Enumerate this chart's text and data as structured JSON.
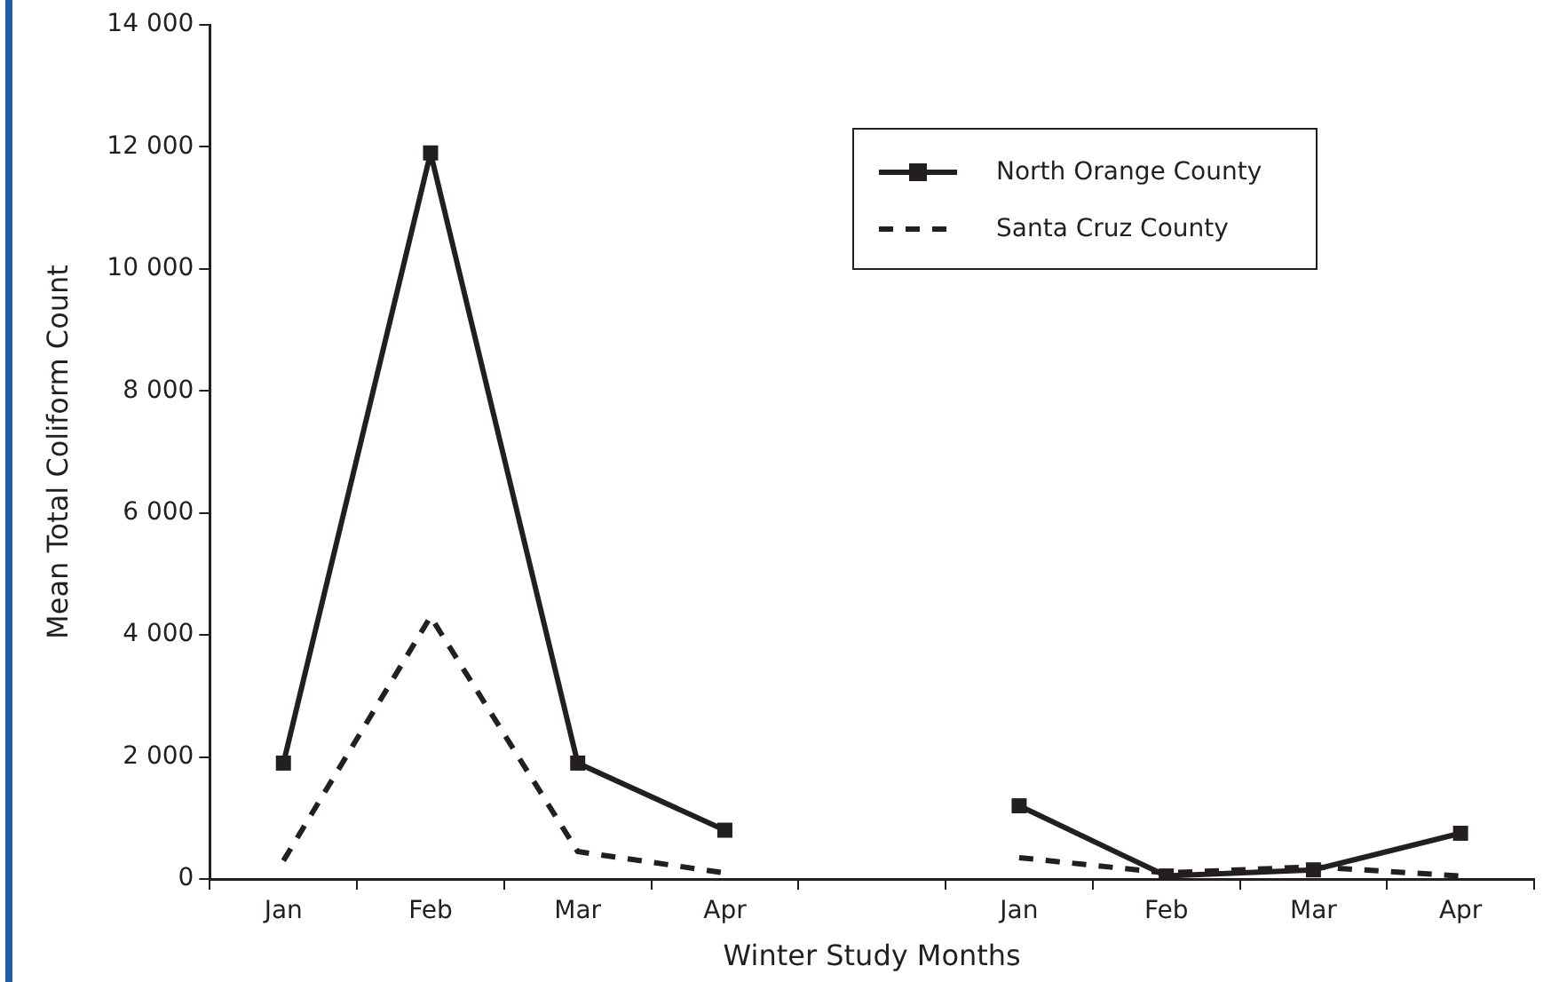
{
  "chart_data": {
    "type": "line",
    "xlabel": "Winter Study Months",
    "ylabel": "Mean Total Coliform Count",
    "categories": [
      "Jan",
      "Feb",
      "Mar",
      "Apr",
      null,
      "Jan",
      "Feb",
      "Mar",
      "Apr"
    ],
    "series": [
      {
        "name": "North Orange County",
        "color": "#231f20",
        "marker": "square",
        "line_style": "solid",
        "values": [
          1900,
          11900,
          1900,
          800,
          null,
          1200,
          50,
          150,
          750
        ]
      },
      {
        "name": "Santa Cruz County",
        "color": "#231f20",
        "marker": "none",
        "line_style": "dashed",
        "values": [
          300,
          4300,
          450,
          100,
          null,
          350,
          100,
          200,
          50
        ]
      }
    ],
    "ylim": [
      0,
      14000
    ],
    "yticks": [
      0,
      {
        "value": 2000,
        "label": "2 000"
      },
      {
        "value": 4000,
        "label": "4 000"
      },
      {
        "value": 6000,
        "label": "6 000"
      },
      {
        "value": 8000,
        "label": "8 000"
      },
      {
        "value": 10000,
        "label": "10 000"
      },
      {
        "value": 12000,
        "label": "12 000"
      },
      {
        "value": 14000,
        "label": "14 000"
      }
    ],
    "grid": false,
    "legend": "top right"
  }
}
